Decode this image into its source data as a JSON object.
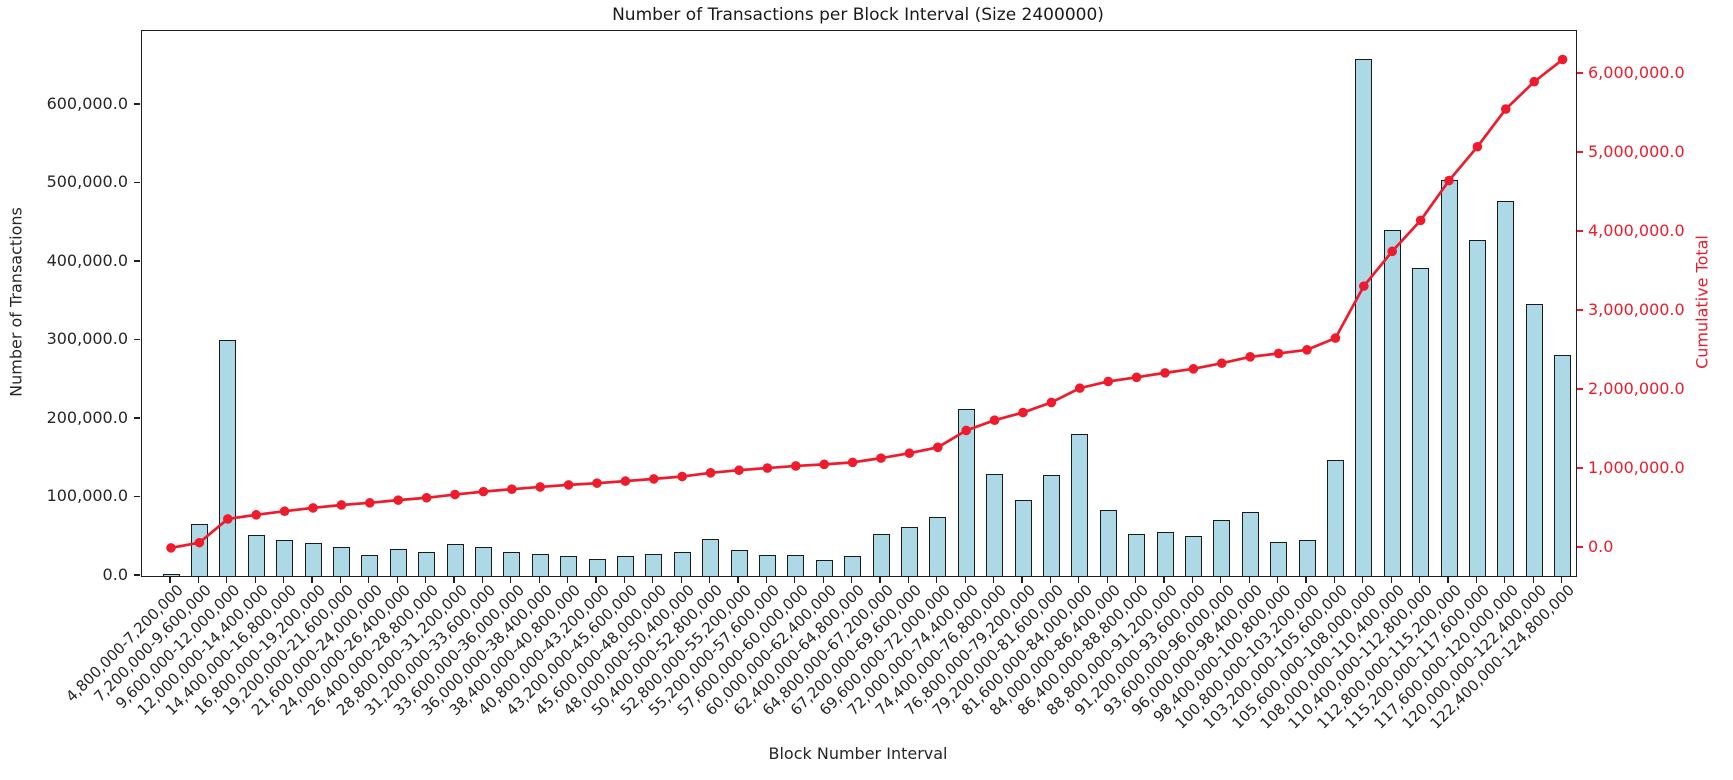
{
  "chart_data": {
    "type": "bar",
    "title": "Number of Transactions per Block Interval (Size 2400000)",
    "xlabel": "Block Number Interval",
    "grid": false,
    "legend": "none",
    "categories": [
      "4,800,000-7,200,000",
      "7,200,000-9,600,000",
      "9,600,000-12,000,000",
      "12,000,000-14,400,000",
      "14,400,000-16,800,000",
      "16,800,000-19,200,000",
      "19,200,000-21,600,000",
      "21,600,000-24,000,000",
      "24,000,000-26,400,000",
      "26,400,000-28,800,000",
      "28,800,000-31,200,000",
      "31,200,000-33,600,000",
      "33,600,000-36,000,000",
      "36,000,000-38,400,000",
      "38,400,000-40,800,000",
      "40,800,000-43,200,000",
      "43,200,000-45,600,000",
      "45,600,000-48,000,000",
      "48,000,000-50,400,000",
      "50,400,000-52,800,000",
      "52,800,000-55,200,000",
      "55,200,000-57,600,000",
      "57,600,000-60,000,000",
      "60,000,000-62,400,000",
      "62,400,000-64,800,000",
      "64,800,000-67,200,000",
      "67,200,000-69,600,000",
      "69,600,000-72,000,000",
      "72,000,000-74,400,000",
      "74,400,000-76,800,000",
      "76,800,000-79,200,000",
      "79,200,000-81,600,000",
      "81,600,000-84,000,000",
      "84,000,000-86,400,000",
      "86,400,000-88,800,000",
      "88,800,000-91,200,000",
      "91,200,000-93,600,000",
      "93,600,000-96,000,000",
      "96,000,000-98,400,000",
      "98,400,000-100,800,000",
      "100,800,000-103,200,000",
      "103,200,000-105,600,000",
      "105,600,000-108,000,000",
      "108,000,000-110,400,000",
      "110,400,000-112,800,000",
      "112,800,000-115,200,000",
      "115,200,000-117,600,000",
      "117,600,000-120,000,000",
      "120,000,000-122,400,000",
      "122,400,000-124,800,000"
    ],
    "series": [
      {
        "name": "Number of Transactions",
        "type": "bar",
        "axis": "left",
        "color": "#add8e6",
        "edge_color": "#1b1b1b",
        "values": [
          2000,
          66000,
          300000,
          52000,
          46000,
          42000,
          37000,
          27000,
          34000,
          30000,
          41000,
          37000,
          31000,
          28000,
          26000,
          22000,
          26000,
          28000,
          30000,
          47000,
          33000,
          27000,
          27000,
          20000,
          25000,
          54000,
          62000,
          75000,
          213000,
          130000,
          97000,
          128000,
          181000,
          84000,
          53000,
          56000,
          51000,
          71000,
          81000,
          43000,
          46000,
          148000,
          658000,
          440000,
          392000,
          504000,
          428000,
          477000,
          346000,
          281000
        ]
      },
      {
        "name": "Cumulative Total",
        "type": "line",
        "axis": "right",
        "color": "#ee1b2c",
        "values": [
          2000,
          68000,
          368000,
          420000,
          466000,
          508000,
          545000,
          572000,
          606000,
          636000,
          677000,
          714000,
          745000,
          773000,
          799000,
          821000,
          847000,
          875000,
          905000,
          952000,
          985000,
          1012000,
          1039000,
          1059000,
          1084000,
          1138000,
          1200000,
          1275000,
          1488000,
          1618000,
          1715000,
          1843000,
          2024000,
          2108000,
          2161000,
          2217000,
          2268000,
          2339000,
          2420000,
          2463000,
          2509000,
          2657000,
          3315000,
          3755000,
          4147000,
          4651000,
          5079000,
          5556000,
          5902000,
          6183000
        ]
      }
    ],
    "left_axis": {
      "label": "Number of Transactions",
      "tick_labels": [
        "0.0",
        "100,000.0",
        "200,000.0",
        "300,000.0",
        "400,000.0",
        "500,000.0",
        "600,000.0"
      ],
      "tick_values": [
        0,
        100000,
        200000,
        300000,
        400000,
        500000,
        600000
      ],
      "range": [
        0,
        694000
      ],
      "color": "#262626"
    },
    "right_axis": {
      "label": "Cumulative Total",
      "tick_labels": [
        "0.0",
        "1,000,000.0",
        "2,000,000.0",
        "3,000,000.0",
        "4,000,000.0",
        "5,000,000.0",
        "6,000,000.0"
      ],
      "tick_values": [
        0,
        1000000,
        2000000,
        3000000,
        4000000,
        5000000,
        6000000
      ],
      "range": [
        -354000,
        6544000
      ],
      "color": "#ee1b2c"
    }
  }
}
